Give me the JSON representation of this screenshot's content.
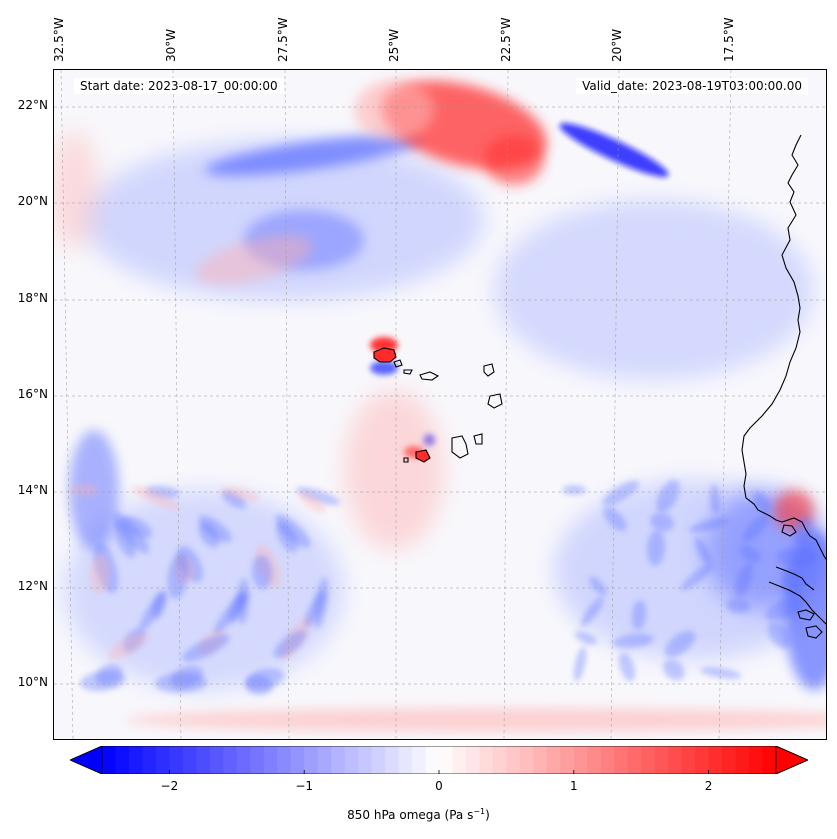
{
  "map": {
    "start_label": "Start date: 2023-08-17_00:00:00",
    "valid_label": "Valid_date: 2023-08-19T03:00:00.00",
    "longitude_ticks": [
      "32.5°W",
      "30°W",
      "27.5°W",
      "25°W",
      "22.5°W",
      "20°W",
      "17.5°W"
    ],
    "latitude_ticks": [
      "22°N",
      "20°N",
      "18°N",
      "16°N",
      "14°N",
      "12°N",
      "10°N"
    ],
    "extent": {
      "lon_min": -32.5,
      "lon_max": -15.0,
      "lat_min": 8.9,
      "lat_max": 22.8
    },
    "gridlines": true,
    "coastline_color": "#000000"
  },
  "colorbar": {
    "ticks": [
      "−2",
      "−1",
      "0",
      "1",
      "2"
    ],
    "tick_values": [
      -2,
      -1,
      0,
      1,
      2
    ],
    "range": [
      -2.5,
      2.5
    ],
    "extend": "both",
    "label_main": "850 hPa omega (Pa s",
    "label_sup": "−1",
    "label_end": ")",
    "colormap": "bwr",
    "low_color": "#0000ff",
    "mid_color": "#ffffff",
    "high_color": "#ff0000"
  }
}
